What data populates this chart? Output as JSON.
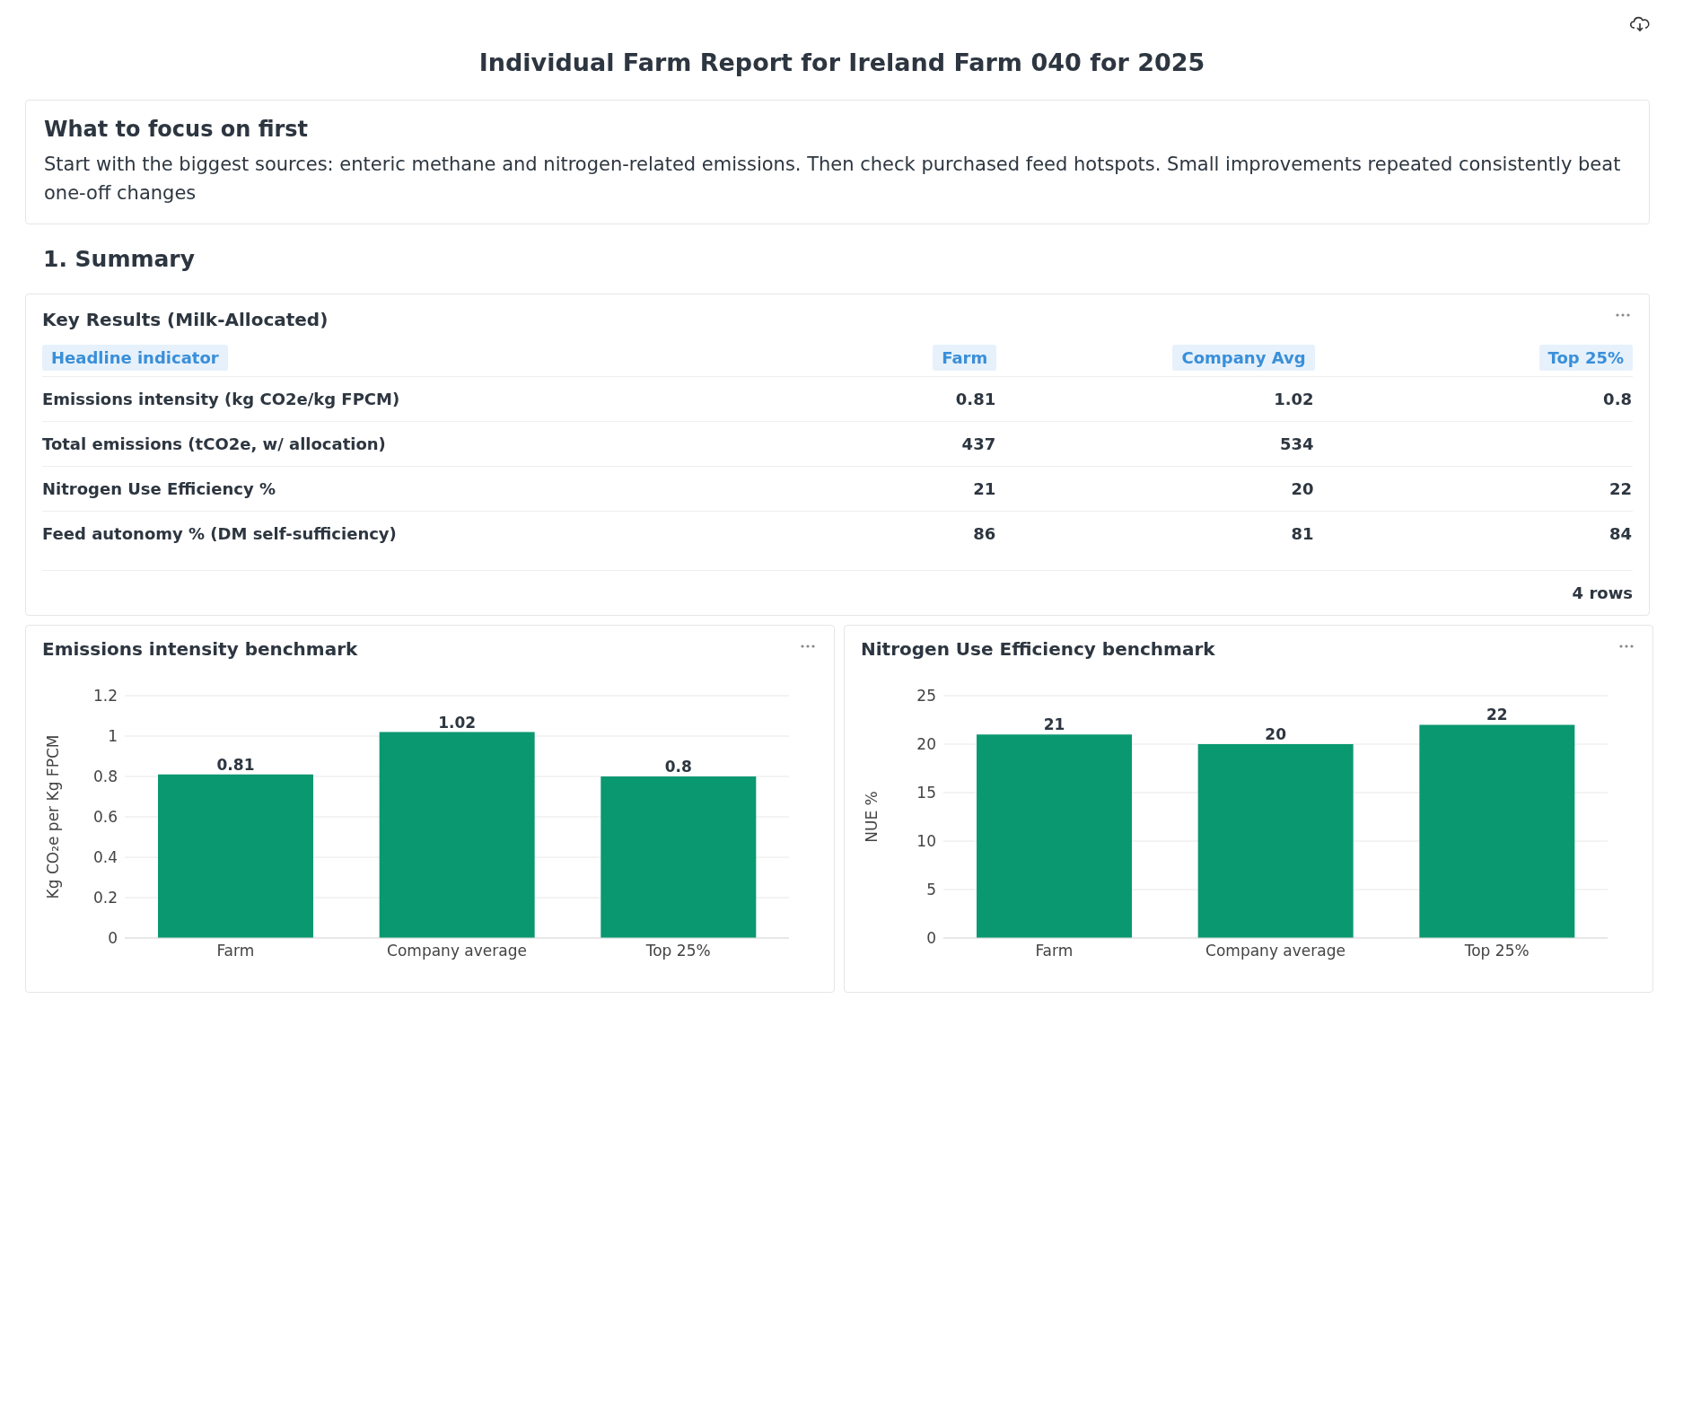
{
  "chart_data": [
    {
      "type": "other",
      "title": "Individual Farm Report for Ireland Farm 040 for 2025",
      "annotations": [
        "What to focus on first",
        "Start with the biggest sources: enteric methane and nitrogen-related emissions. Then check purchased feed hotspots. Small improvements repeated consistently beat one-off changes",
        "1. Summary"
      ]
    },
    {
      "type": "other",
      "title": "Key Results (Milk-Allocated)",
      "categories": [
        "Headline indicator",
        "Farm",
        "Company Avg",
        "Top 25%"
      ],
      "y_categories": [
        "Emissions intensity (kg CO2e/kg FPCM)",
        "Total emissions (tCO2e, w/ allocation)",
        "Nitrogen Use Efficiency %",
        "Feed autonomy % (DM self-sufficiency)"
      ],
      "cell_labels": [
        [
          "0.81",
          "1.02",
          "0.8"
        ],
        [
          "437",
          "534",
          null
        ],
        [
          "21",
          "20",
          "22"
        ],
        [
          "86",
          "81",
          "84"
        ]
      ],
      "annotations": [
        "4 rows"
      ]
    },
    {
      "type": "bar",
      "title": "Emissions intensity benchmark",
      "categories": [
        "Farm",
        "Company average",
        "Top 25%"
      ],
      "values": [
        0.81,
        1.02,
        0.8
      ],
      "color": "#0a9871",
      "ylabel": "Kg CO₂e per Kg FPCM",
      "ylim": [
        0,
        1.2
      ],
      "yticks": [
        0,
        0.2,
        0.4,
        0.6,
        0.8,
        1,
        1.2
      ],
      "grid": "y",
      "data_labels": true
    },
    {
      "type": "bar",
      "title": "Nitrogen Use Efficiency benchmark",
      "categories": [
        "Farm",
        "Company average",
        "Top 25%"
      ],
      "values": [
        21,
        20,
        22
      ],
      "color": "#0a9871",
      "ylabel": "NUE %",
      "ylim": [
        0,
        25
      ],
      "yticks": [
        0,
        5,
        10,
        15,
        20,
        25
      ],
      "grid": "y",
      "data_labels": true
    }
  ]
}
